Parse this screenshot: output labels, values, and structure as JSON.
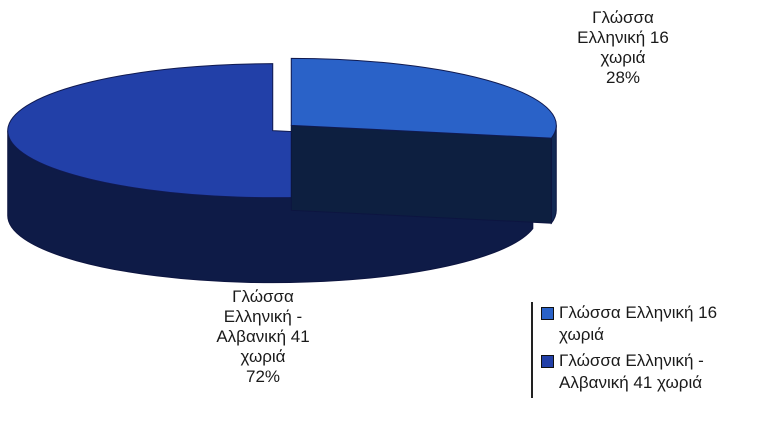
{
  "chart_data": {
    "type": "pie",
    "title": "",
    "series": [
      {
        "values": [
          {
            "label": "Γλώσσα Ελληνική 16 χωριά",
            "value": 16,
            "percent": "28%",
            "color": "#2a62c8"
          },
          {
            "label": "Γλώσσα Ελληνική - Αλβανική 41 χωριά",
            "value": 41,
            "percent": "72%",
            "color": "#2240a8"
          }
        ]
      }
    ],
    "data_labels": [
      {
        "lines": [
          "Γλώσσα",
          "Ελληνική 16",
          "χωριά"
        ],
        "percent": "28%"
      },
      {
        "lines": [
          "Γλώσσα",
          "Ελληνική -",
          "Αλβανική 41",
          "χωριά"
        ],
        "percent": "72%"
      }
    ],
    "legend": {
      "placement": "bottom-right",
      "entries": [
        "Γλώσσα Ελληνική 16 χωριά",
        "Γλώσσα Ελληνική - Αλβανική 41 χωριά"
      ]
    },
    "style": "3d-exploded"
  }
}
